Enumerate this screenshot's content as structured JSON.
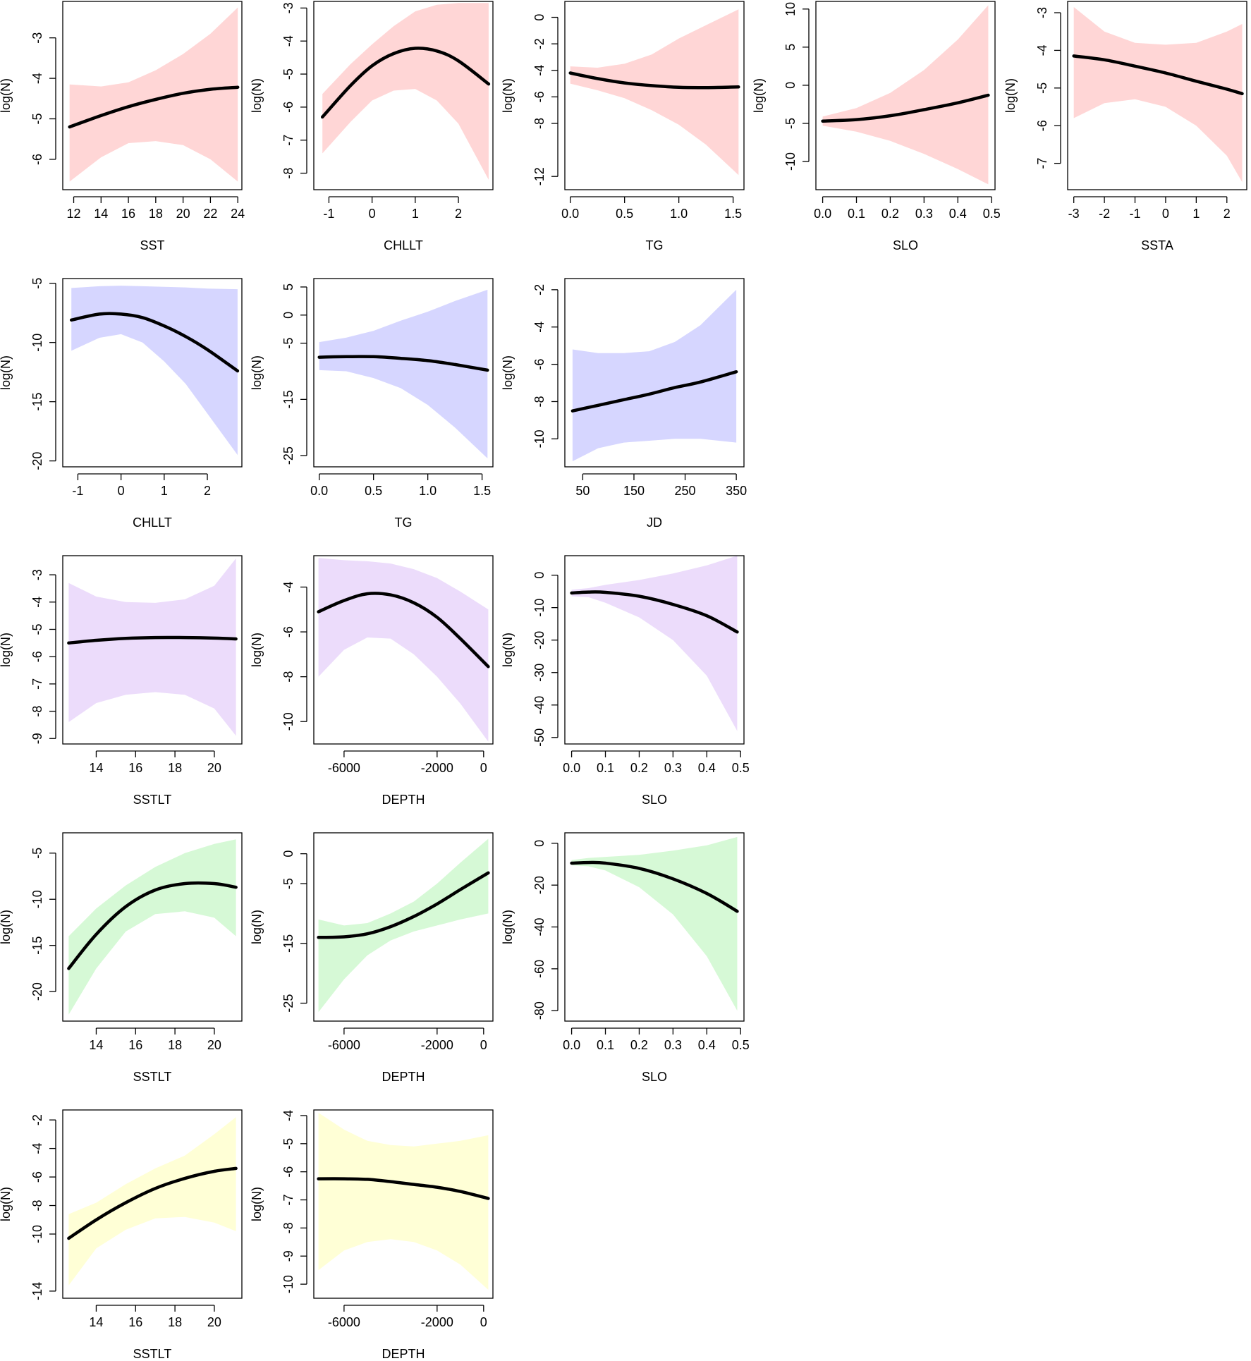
{
  "colors": {
    "row1_band": "#ffd6d6",
    "row2_band": "#d6d6ff",
    "row3_band": "#ecdcfb",
    "row4_band": "#d6f9d6",
    "row5_band": "#ffffd6",
    "fit_line": "#000000"
  },
  "chart_data": [
    {
      "type": "line",
      "panel": "r1c1",
      "xlabel": "SST",
      "ylabel": "log(N)",
      "xticks": [
        12,
        14,
        16,
        18,
        20,
        22,
        24
      ],
      "yticks": [
        -3,
        -4,
        -5,
        -6
      ],
      "xlim": [
        11.2,
        24.3
      ],
      "ylim": [
        -6.75,
        -2.1
      ],
      "x": [
        11.7,
        14,
        16,
        18,
        20,
        22,
        24
      ],
      "y": [
        -5.2,
        -4.92,
        -4.7,
        -4.52,
        -4.37,
        -4.27,
        -4.22
      ],
      "lower": [
        -6.55,
        -5.95,
        -5.6,
        -5.55,
        -5.65,
        -6,
        -6.55
      ],
      "upper": [
        -4.15,
        -4.2,
        -4.1,
        -3.8,
        -3.4,
        -2.9,
        -2.25
      ]
    },
    {
      "type": "line",
      "panel": "r1c2",
      "xlabel": "CHLLT",
      "ylabel": "log(N)",
      "xticks": [
        -1,
        0,
        1,
        2
      ],
      "yticks": [
        -3,
        -4,
        -5,
        -6,
        -7,
        -8
      ],
      "xlim": [
        -1.35,
        2.8
      ],
      "ylim": [
        -8.5,
        -2.8
      ],
      "x": [
        -1.15,
        -0.5,
        0,
        0.5,
        1,
        1.5,
        2,
        2.7
      ],
      "y": [
        -6.3,
        -5.35,
        -4.75,
        -4.38,
        -4.22,
        -4.3,
        -4.6,
        -5.3
      ],
      "lower": [
        -7.4,
        -6.45,
        -5.8,
        -5.5,
        -5.45,
        -5.8,
        -6.5,
        -8.2
      ],
      "upper": [
        -5.6,
        -4.7,
        -4.1,
        -3.55,
        -3.1,
        -2.9,
        -2.85,
        -2.85
      ]
    },
    {
      "type": "line",
      "panel": "r1c3",
      "xlabel": "TG",
      "ylabel": "log(N)",
      "xticks": [
        "0.0",
        "0.5",
        "1.0",
        "1.5"
      ],
      "yticks": [
        0,
        -2,
        -4,
        -6,
        -8,
        -12
      ],
      "xlim": [
        -0.05,
        1.6
      ],
      "ylim": [
        -13,
        1.2
      ],
      "x": [
        0,
        0.25,
        0.5,
        0.75,
        1,
        1.25,
        1.55
      ],
      "y": [
        -4.2,
        -4.62,
        -4.95,
        -5.15,
        -5.28,
        -5.3,
        -5.25
      ],
      "lower": [
        -5,
        -5.5,
        -6.1,
        -7,
        -8.1,
        -9.6,
        -11.9
      ],
      "upper": [
        -3.7,
        -3.8,
        -3.5,
        -2.8,
        -1.6,
        -0.6,
        0.6
      ]
    },
    {
      "type": "line",
      "panel": "r1c4",
      "xlabel": "SLO",
      "ylabel": "log(N)",
      "xticks": [
        "0.0",
        "0.1",
        "0.2",
        "0.3",
        "0.4",
        "0.5"
      ],
      "yticks": [
        10,
        5,
        0,
        -5,
        -10
      ],
      "xlim": [
        -0.02,
        0.51
      ],
      "ylim": [
        -13.7,
        11
      ],
      "x": [
        0,
        0.1,
        0.2,
        0.3,
        0.4,
        0.49
      ],
      "y": [
        -4.7,
        -4.5,
        -4,
        -3.2,
        -2.3,
        -1.3
      ],
      "lower": [
        -5.3,
        -6.1,
        -7.3,
        -9,
        -11,
        -13
      ],
      "upper": [
        -4.1,
        -3,
        -1,
        2,
        6,
        10.5
      ]
    },
    {
      "type": "line",
      "panel": "r1c5",
      "xlabel": "SSTA",
      "ylabel": "log(N)",
      "xticks": [
        -3,
        -2,
        -1,
        0,
        1,
        2
      ],
      "yticks": [
        -3,
        -4,
        -5,
        -6,
        -7
      ],
      "xlim": [
        -3.2,
        2.65
      ],
      "ylim": [
        -7.7,
        -2.7
      ],
      "x": [
        -3,
        -2,
        -1,
        0,
        1,
        2,
        2.5
      ],
      "y": [
        -4.15,
        -4.25,
        -4.42,
        -4.6,
        -4.82,
        -5.03,
        -5.15
      ],
      "lower": [
        -5.8,
        -5.4,
        -5.3,
        -5.5,
        -6,
        -6.8,
        -7.5
      ],
      "upper": [
        -2.85,
        -3.5,
        -3.8,
        -3.85,
        -3.8,
        -3.5,
        -3.3
      ]
    },
    {
      "type": "line",
      "panel": "r2c1",
      "xlabel": "CHLLT",
      "ylabel": "log(N)",
      "xticks": [
        -1,
        0,
        1,
        2
      ],
      "yticks": [
        -5,
        -10,
        -15,
        -20
      ],
      "xlim": [
        -1.35,
        2.8
      ],
      "ylim": [
        -20.5,
        -4.6
      ],
      "x": [
        -1.15,
        -0.5,
        0,
        0.5,
        1,
        1.5,
        2,
        2.7
      ],
      "y": [
        -8.1,
        -7.6,
        -7.6,
        -7.9,
        -8.6,
        -9.5,
        -10.6,
        -12.4
      ],
      "lower": [
        -10.7,
        -9.6,
        -9.3,
        -10,
        -11.6,
        -13.5,
        -16,
        -19.5
      ],
      "upper": [
        -5.4,
        -5.25,
        -5.2,
        -5.25,
        -5.3,
        -5.35,
        -5.45,
        -5.5
      ]
    },
    {
      "type": "line",
      "panel": "r2c2",
      "xlabel": "TG",
      "ylabel": "log(N)",
      "xticks": [
        "0.0",
        "0.5",
        "1.0",
        "1.5"
      ],
      "yticks": [
        5,
        0,
        -5,
        -15,
        -25
      ],
      "xlim": [
        -0.05,
        1.6
      ],
      "ylim": [
        -27,
        6.5
      ],
      "x": [
        0,
        0.25,
        0.5,
        0.75,
        1,
        1.25,
        1.55
      ],
      "y": [
        -7.5,
        -7.4,
        -7.4,
        -7.7,
        -8.1,
        -8.8,
        -9.8
      ],
      "lower": [
        -9.8,
        -10,
        -11.2,
        -13,
        -16,
        -20,
        -25.5
      ],
      "upper": [
        -4.8,
        -4,
        -2.8,
        -1,
        0.6,
        2.5,
        4.5
      ]
    },
    {
      "type": "line",
      "panel": "r2c3",
      "xlabel": "JD",
      "ylabel": "log(N)",
      "xticks": [
        50,
        150,
        250,
        350
      ],
      "yticks": [
        -2,
        -4,
        -6,
        -8,
        -10
      ],
      "xlim": [
        15,
        365
      ],
      "ylim": [
        -11.5,
        -1.4
      ],
      "x": [
        30,
        80,
        130,
        180,
        230,
        280,
        350
      ],
      "y": [
        -8.5,
        -8.2,
        -7.9,
        -7.6,
        -7.25,
        -6.95,
        -6.4
      ],
      "lower": [
        -11.2,
        -10.5,
        -10.2,
        -10.1,
        -10,
        -10,
        -10.2
      ],
      "upper": [
        -5.2,
        -5.4,
        -5.4,
        -5.3,
        -4.8,
        -3.9,
        -2
      ]
    },
    {
      "type": "line",
      "panel": "r3c1",
      "xlabel": "SSTLT",
      "ylabel": "log(N)",
      "xticks": [
        14,
        16,
        18,
        20
      ],
      "yticks": [
        -3,
        -4,
        -5,
        -6,
        -7,
        -8,
        -9
      ],
      "xlim": [
        12.3,
        21.4
      ],
      "ylim": [
        -9.2,
        -2.3
      ],
      "x": [
        12.6,
        14,
        15.5,
        17,
        18.5,
        20,
        21.1
      ],
      "y": [
        -5.5,
        -5.4,
        -5.33,
        -5.3,
        -5.3,
        -5.32,
        -5.35
      ],
      "lower": [
        -8.4,
        -7.7,
        -7.4,
        -7.3,
        -7.4,
        -7.9,
        -8.9
      ],
      "upper": [
        -3.3,
        -3.8,
        -4,
        -4.03,
        -3.9,
        -3.4,
        -2.4
      ]
    },
    {
      "type": "line",
      "panel": "r3c2",
      "xlabel": "DEPTH",
      "ylabel": "log(N)",
      "xticks": [
        -6000,
        -2000,
        0
      ],
      "yticks": [
        -4,
        -6,
        -8,
        -10
      ],
      "xlim": [
        -7300,
        400
      ],
      "ylim": [
        -11,
        -2.6
      ],
      "x": [
        -7100,
        -6000,
        -5000,
        -4000,
        -3000,
        -2000,
        -1000,
        200
      ],
      "y": [
        -5.1,
        -4.6,
        -4.3,
        -4.35,
        -4.7,
        -5.35,
        -6.3,
        -7.55
      ],
      "lower": [
        -8,
        -6.8,
        -6.25,
        -6.3,
        -7,
        -8,
        -9.2,
        -10.9
      ],
      "upper": [
        -2.7,
        -2.8,
        -2.85,
        -2.95,
        -3.2,
        -3.6,
        -4.2,
        -5
      ]
    },
    {
      "type": "line",
      "panel": "r3c3",
      "xlabel": "SLO",
      "ylabel": "log(N)",
      "xticks": [
        "0.0",
        "0.1",
        "0.2",
        "0.3",
        "0.4",
        "0.5"
      ],
      "yticks": [
        0,
        -10,
        -20,
        -30,
        -40,
        -50
      ],
      "xlim": [
        -0.02,
        0.51
      ],
      "ylim": [
        -52,
        6
      ],
      "x": [
        0,
        0.05,
        0.1,
        0.2,
        0.3,
        0.4,
        0.49
      ],
      "y": [
        -5.5,
        -5.2,
        -5.3,
        -6.5,
        -9,
        -12.5,
        -17.5
      ],
      "lower": [
        -6.5,
        -6.8,
        -8.5,
        -13,
        -20,
        -31,
        -48
      ],
      "upper": [
        -4.5,
        -4,
        -3,
        -1.5,
        0.5,
        3,
        6
      ]
    },
    {
      "type": "line",
      "panel": "r4c1",
      "xlabel": "SSTLT",
      "ylabel": "log(N)",
      "xticks": [
        14,
        16,
        18,
        20
      ],
      "yticks": [
        -5,
        -10,
        -15,
        -20
      ],
      "xlim": [
        12.3,
        21.4
      ],
      "ylim": [
        -23.2,
        -2.8
      ],
      "x": [
        12.6,
        14,
        15.5,
        17,
        18.5,
        20,
        21.1
      ],
      "y": [
        -17.5,
        -13.8,
        -10.8,
        -9,
        -8.3,
        -8.3,
        -8.7
      ],
      "lower": [
        -22.5,
        -17.5,
        -13.5,
        -11.6,
        -11.3,
        -12,
        -14
      ],
      "upper": [
        -14,
        -11,
        -8.5,
        -6.5,
        -5,
        -4,
        -3.5
      ]
    },
    {
      "type": "line",
      "panel": "r4c2",
      "xlabel": "DEPTH",
      "ylabel": "log(N)",
      "xticks": [
        -6000,
        -2000,
        0
      ],
      "yticks": [
        0,
        -5,
        -15,
        -25
      ],
      "xlim": [
        -7300,
        400
      ],
      "ylim": [
        -28,
        3.5
      ],
      "x": [
        -7100,
        -6000,
        -5000,
        -4000,
        -3000,
        -2000,
        -1000,
        200
      ],
      "y": [
        -14,
        -13.9,
        -13.4,
        -12.2,
        -10.5,
        -8.4,
        -6,
        -3.2
      ],
      "lower": [
        -26.5,
        -21,
        -17,
        -14.5,
        -13,
        -12,
        -11,
        -10
      ],
      "upper": [
        -11,
        -12,
        -11.6,
        -10,
        -8,
        -5,
        -1.5,
        2.5
      ]
    },
    {
      "type": "line",
      "panel": "r4c3",
      "xlabel": "SLO",
      "ylabel": "log(N)",
      "xticks": [
        "0.0",
        "0.1",
        "0.2",
        "0.3",
        "0.4",
        "0.5"
      ],
      "yticks": [
        0,
        -20,
        -40,
        -60,
        -80
      ],
      "xlim": [
        -0.02,
        0.51
      ],
      "ylim": [
        -85,
        5
      ],
      "x": [
        0,
        0.05,
        0.1,
        0.2,
        0.3,
        0.4,
        0.49
      ],
      "y": [
        -9.5,
        -9.2,
        -9.5,
        -12,
        -17,
        -24,
        -32.5
      ],
      "lower": [
        -10.5,
        -11,
        -13,
        -21,
        -34,
        -54,
        -80
      ],
      "upper": [
        -8,
        -7,
        -6.5,
        -5.5,
        -3.5,
        -1,
        3
      ]
    },
    {
      "type": "line",
      "panel": "r5c1",
      "xlabel": "SSTLT",
      "ylabel": "log(N)",
      "xticks": [
        14,
        16,
        18,
        20
      ],
      "yticks": [
        -2,
        -4,
        -6,
        -8,
        -10,
        -14
      ],
      "xlim": [
        12.3,
        21.4
      ],
      "ylim": [
        -14.5,
        -1.3
      ],
      "x": [
        12.6,
        14,
        15.5,
        17,
        18.5,
        20,
        21.1
      ],
      "y": [
        -10.3,
        -9,
        -7.8,
        -6.8,
        -6.1,
        -5.6,
        -5.4
      ],
      "lower": [
        -13.6,
        -11,
        -9.7,
        -8.9,
        -8.8,
        -9.2,
        -9.8
      ],
      "upper": [
        -8.6,
        -7.8,
        -6.5,
        -5.4,
        -4.5,
        -3,
        -1.8
      ]
    },
    {
      "type": "line",
      "panel": "r5c2",
      "xlabel": "DEPTH",
      "ylabel": "log(N)",
      "xticks": [
        -6000,
        -2000,
        0
      ],
      "yticks": [
        -4,
        -5,
        -6,
        -7,
        -8,
        -9,
        -10
      ],
      "xlim": [
        -7300,
        400
      ],
      "ylim": [
        -10.5,
        -3.8
      ],
      "x": [
        -7100,
        -6000,
        -5000,
        -4000,
        -3000,
        -2000,
        -1000,
        200
      ],
      "y": [
        -6.25,
        -6.25,
        -6.27,
        -6.35,
        -6.45,
        -6.55,
        -6.7,
        -6.95
      ],
      "lower": [
        -9.5,
        -8.8,
        -8.5,
        -8.4,
        -8.5,
        -8.8,
        -9.3,
        -10.2
      ],
      "upper": [
        -3.9,
        -4.5,
        -4.9,
        -5.05,
        -5.1,
        -5,
        -4.9,
        -4.7
      ]
    }
  ]
}
